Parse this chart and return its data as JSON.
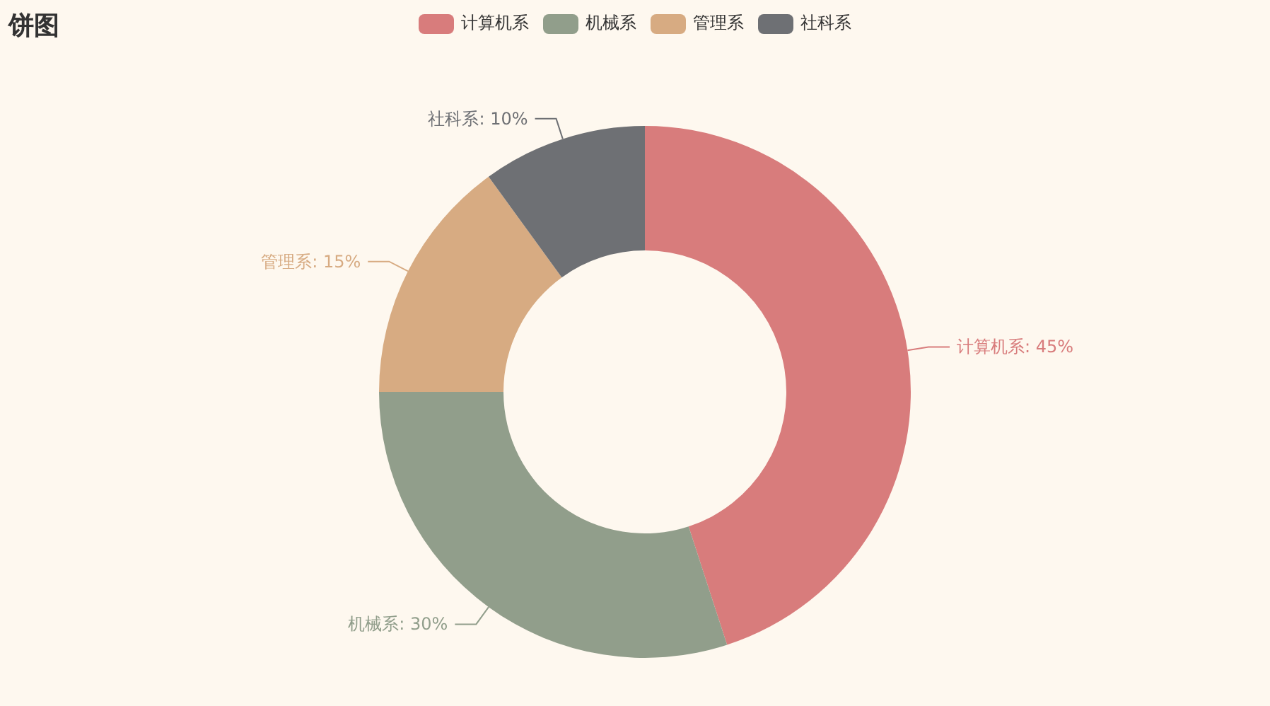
{
  "chart_data": {
    "type": "donut",
    "title": "饼图",
    "categories": [
      "计算机系",
      "机械系",
      "管理系",
      "社科系"
    ],
    "values": [
      45,
      30,
      15,
      10
    ],
    "value_labels": [
      "计算机系: 45%",
      "机械系: 30%",
      "管理系: 15%",
      "社科系: 10%"
    ],
    "colors": [
      "#d87c7c",
      "#919e8b",
      "#d7ab82",
      "#6e7074"
    ],
    "legend": "top"
  }
}
